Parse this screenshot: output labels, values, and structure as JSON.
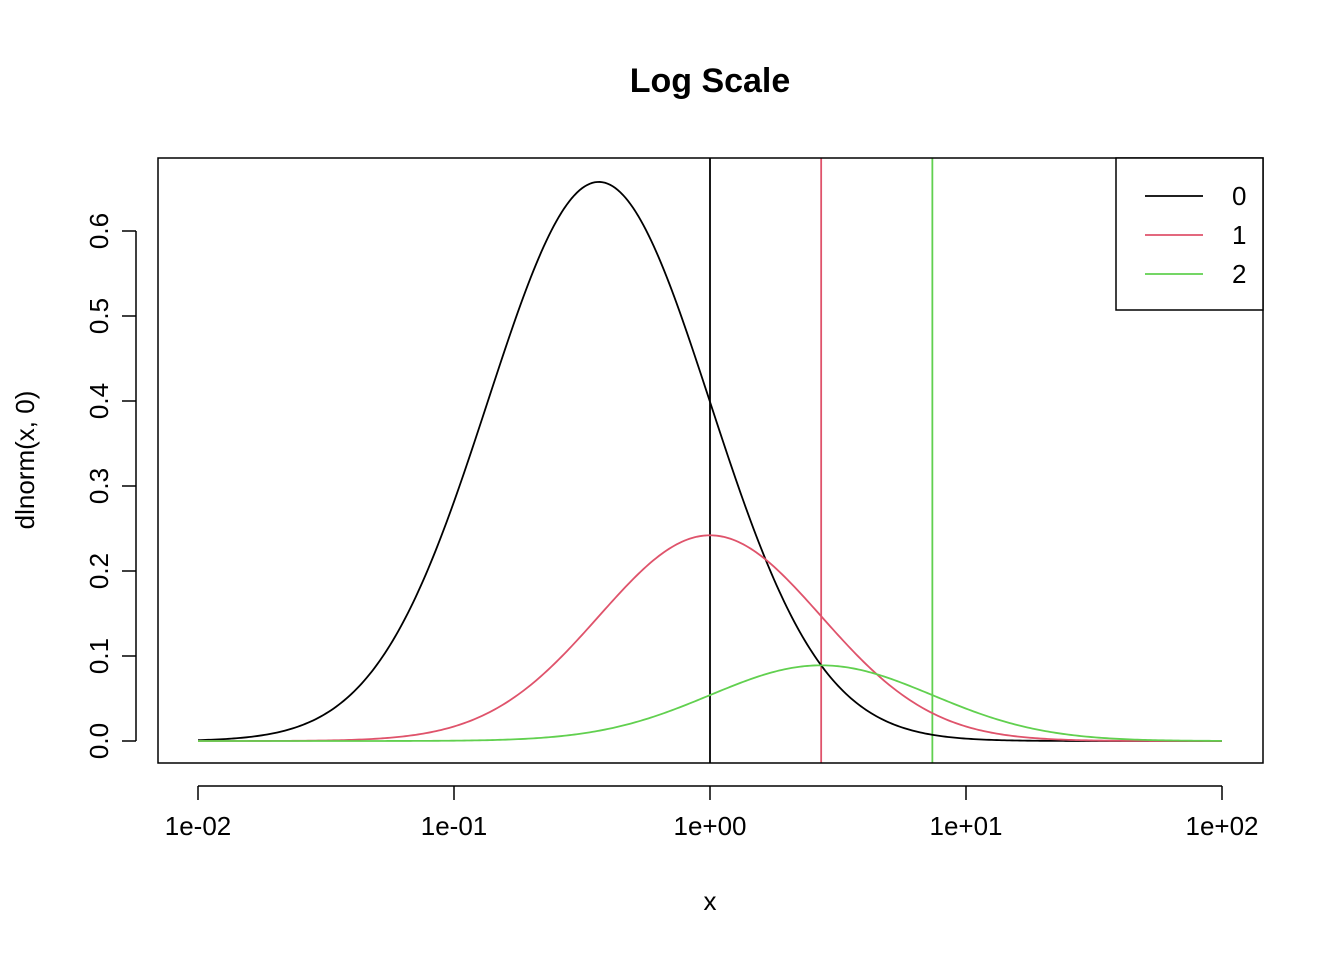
{
  "chart_data": {
    "type": "line",
    "title": "Log Scale",
    "xlabel": "x",
    "ylabel": "dlnorm(x, 0)",
    "x_scale": "log10",
    "xlim": [
      0.01,
      100
    ],
    "ylim": [
      0,
      0.66
    ],
    "x_ticks": [
      0.01,
      0.1,
      1,
      10,
      100
    ],
    "x_tick_labels": [
      "1e-02",
      "1e-01",
      "1e+00",
      "1e+01",
      "1e+02"
    ],
    "y_ticks": [
      0,
      0.1,
      0.2,
      0.3,
      0.4,
      0.5,
      0.6
    ],
    "y_tick_labels": [
      "0.0",
      "0.1",
      "0.2",
      "0.3",
      "0.4",
      "0.5",
      "0.6"
    ],
    "grid": false,
    "legend": {
      "position": "top-right",
      "entries": [
        "0",
        "1",
        "2"
      ]
    },
    "series": [
      {
        "name": "0",
        "meanlog": 0,
        "sdlog": 1,
        "color": "#000000",
        "peak": {
          "x": 0.368,
          "y": 0.657
        },
        "vline_x": 1
      },
      {
        "name": "1",
        "meanlog": 1,
        "sdlog": 1,
        "color": "#DF536B",
        "peak": {
          "x": 1.0,
          "y": 0.242
        },
        "vline_x": 2.718
      },
      {
        "name": "2",
        "meanlog": 2,
        "sdlog": 1,
        "color": "#61D04F",
        "peak": {
          "x": 2.718,
          "y": 0.089
        },
        "vline_x": 7.389
      }
    ]
  }
}
